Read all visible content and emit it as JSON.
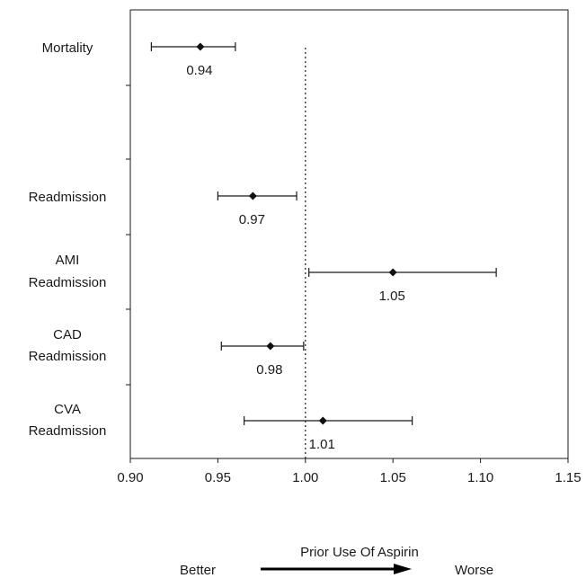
{
  "chart_data": {
    "type": "forest",
    "xlabel": "Prior Use Of Aspirin",
    "xlim": [
      0.9,
      1.15
    ],
    "x_ticks": [
      "0.90",
      "0.95",
      "1.00",
      "1.05",
      "1.10",
      "1.15"
    ],
    "reference_line": 1.0,
    "rows": [
      {
        "label_lines": [
          "Mortality"
        ],
        "value": 0.94,
        "value_label": "0.94",
        "ci": [
          0.912,
          0.96
        ]
      },
      {
        "label_lines": [
          "Readmission"
        ],
        "value": 0.97,
        "value_label": "0.97",
        "ci": [
          0.95,
          0.995
        ]
      },
      {
        "label_lines": [
          "AMI",
          "Readmission"
        ],
        "value": 1.05,
        "value_label": "1.05",
        "ci": [
          1.002,
          1.109
        ]
      },
      {
        "label_lines": [
          "CAD",
          "Readmission"
        ],
        "value": 0.98,
        "value_label": "0.98",
        "ci": [
          0.952,
          0.999
        ]
      },
      {
        "label_lines": [
          "CVA",
          "Readmission"
        ],
        "value": 1.01,
        "value_label": "1.01",
        "ci": [
          0.965,
          1.061
        ]
      }
    ],
    "direction": {
      "left": "Better",
      "right": "Worse"
    }
  }
}
